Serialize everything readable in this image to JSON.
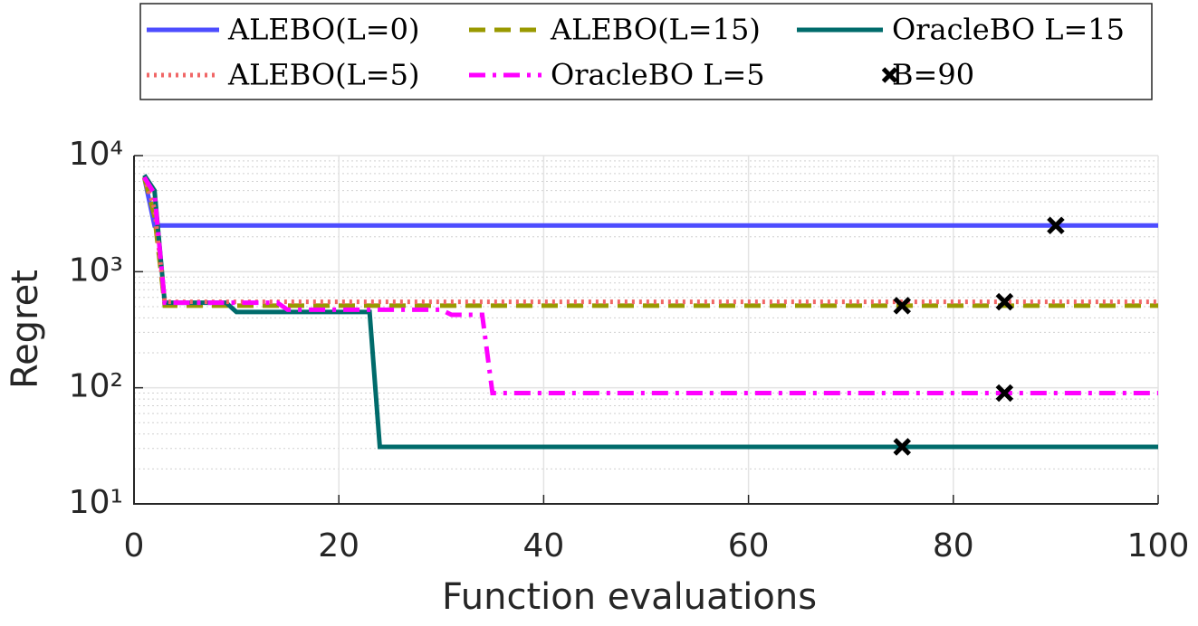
{
  "chart_data": {
    "type": "line",
    "xlabel": "Function evaluations",
    "ylabel": "Regret",
    "xlim": [
      0,
      100
    ],
    "xticks": [
      0,
      20,
      40,
      60,
      80,
      100
    ],
    "ylim": [
      10,
      10000
    ],
    "yscale": "log",
    "yticks": [
      {
        "value": 10,
        "label": "10¹"
      },
      {
        "value": 100,
        "label": "10²"
      },
      {
        "value": 1000,
        "label": "10³"
      },
      {
        "value": 10000,
        "label": "10⁴"
      }
    ],
    "grid": true,
    "minor_grid": true,
    "series": [
      {
        "name": "ALEBO(L=0)",
        "color": "#4d4dff",
        "style": "solid",
        "x": [
          1,
          2,
          100
        ],
        "values": [
          6500,
          2500,
          2500
        ]
      },
      {
        "name": "ALEBO(L=15)",
        "color": "#999900",
        "style": "dashed",
        "x": [
          1,
          2,
          3,
          100
        ],
        "values": [
          6500,
          3000,
          510,
          510
        ]
      },
      {
        "name": "OracleBO L=15",
        "color": "#006b6b",
        "style": "solid",
        "x": [
          1,
          2,
          3,
          9,
          10,
          23,
          24,
          100
        ],
        "values": [
          6800,
          5000,
          540,
          540,
          450,
          450,
          31,
          31
        ]
      },
      {
        "name": "ALEBO(L=5)",
        "color": "#f06666",
        "style": "dotted",
        "x": [
          1,
          2,
          3,
          100
        ],
        "values": [
          6500,
          3500,
          550,
          550
        ]
      },
      {
        "name": "OracleBO L=5",
        "color": "#ff00ff",
        "style": "dashdot",
        "x": [
          1,
          2,
          3,
          14,
          15,
          30,
          31,
          34,
          35,
          100
        ],
        "values": [
          6500,
          4700,
          540,
          540,
          470,
          470,
          425,
          425,
          90,
          90
        ]
      }
    ],
    "markers": {
      "name": "B=90",
      "color": "#000000",
      "x": [
        90,
        75,
        85,
        85,
        75
      ],
      "values": [
        2500,
        510,
        550,
        90,
        31
      ]
    }
  }
}
